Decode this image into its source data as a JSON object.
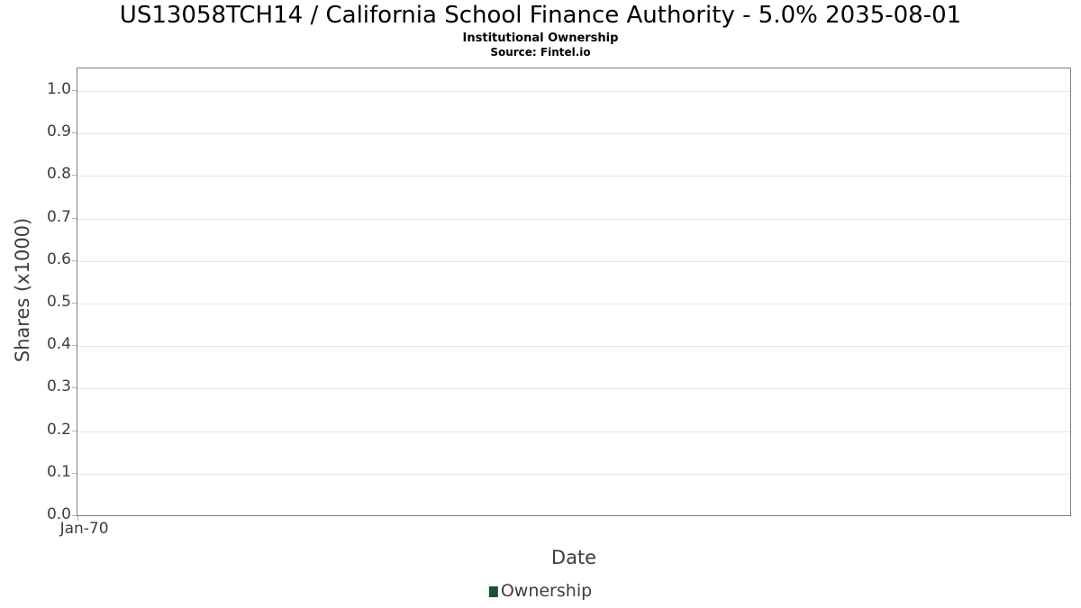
{
  "chart": {
    "title": "US13058TCH14 / California School Finance Authority - 5.0% 2035-08-01",
    "subtitle": "Institutional Ownership",
    "source": "Source: Fintel.io"
  },
  "chart_data": {
    "type": "line",
    "title": "US13058TCH14 / California School Finance Authority - 5.0% 2035-08-01",
    "subtitle": "Institutional Ownership",
    "source": "Source: Fintel.io",
    "xlabel": "Date",
    "ylabel": "Shares (x1000)",
    "x_ticks": [
      "Jan-70"
    ],
    "y_ticks": [
      0.0,
      0.1,
      0.2,
      0.3,
      0.4,
      0.5,
      0.6,
      0.7,
      0.8,
      0.9,
      1.0
    ],
    "ylim": [
      0.0,
      1.053
    ],
    "grid": true,
    "grid_color": "#e6e6e6",
    "legend_position": "bottom-center",
    "legend": [
      {
        "label": "Ownership",
        "marker": "square",
        "color": "#1c5230"
      }
    ],
    "series": [
      {
        "name": "Ownership",
        "color": "#1c5230",
        "x": [],
        "values": []
      }
    ]
  }
}
